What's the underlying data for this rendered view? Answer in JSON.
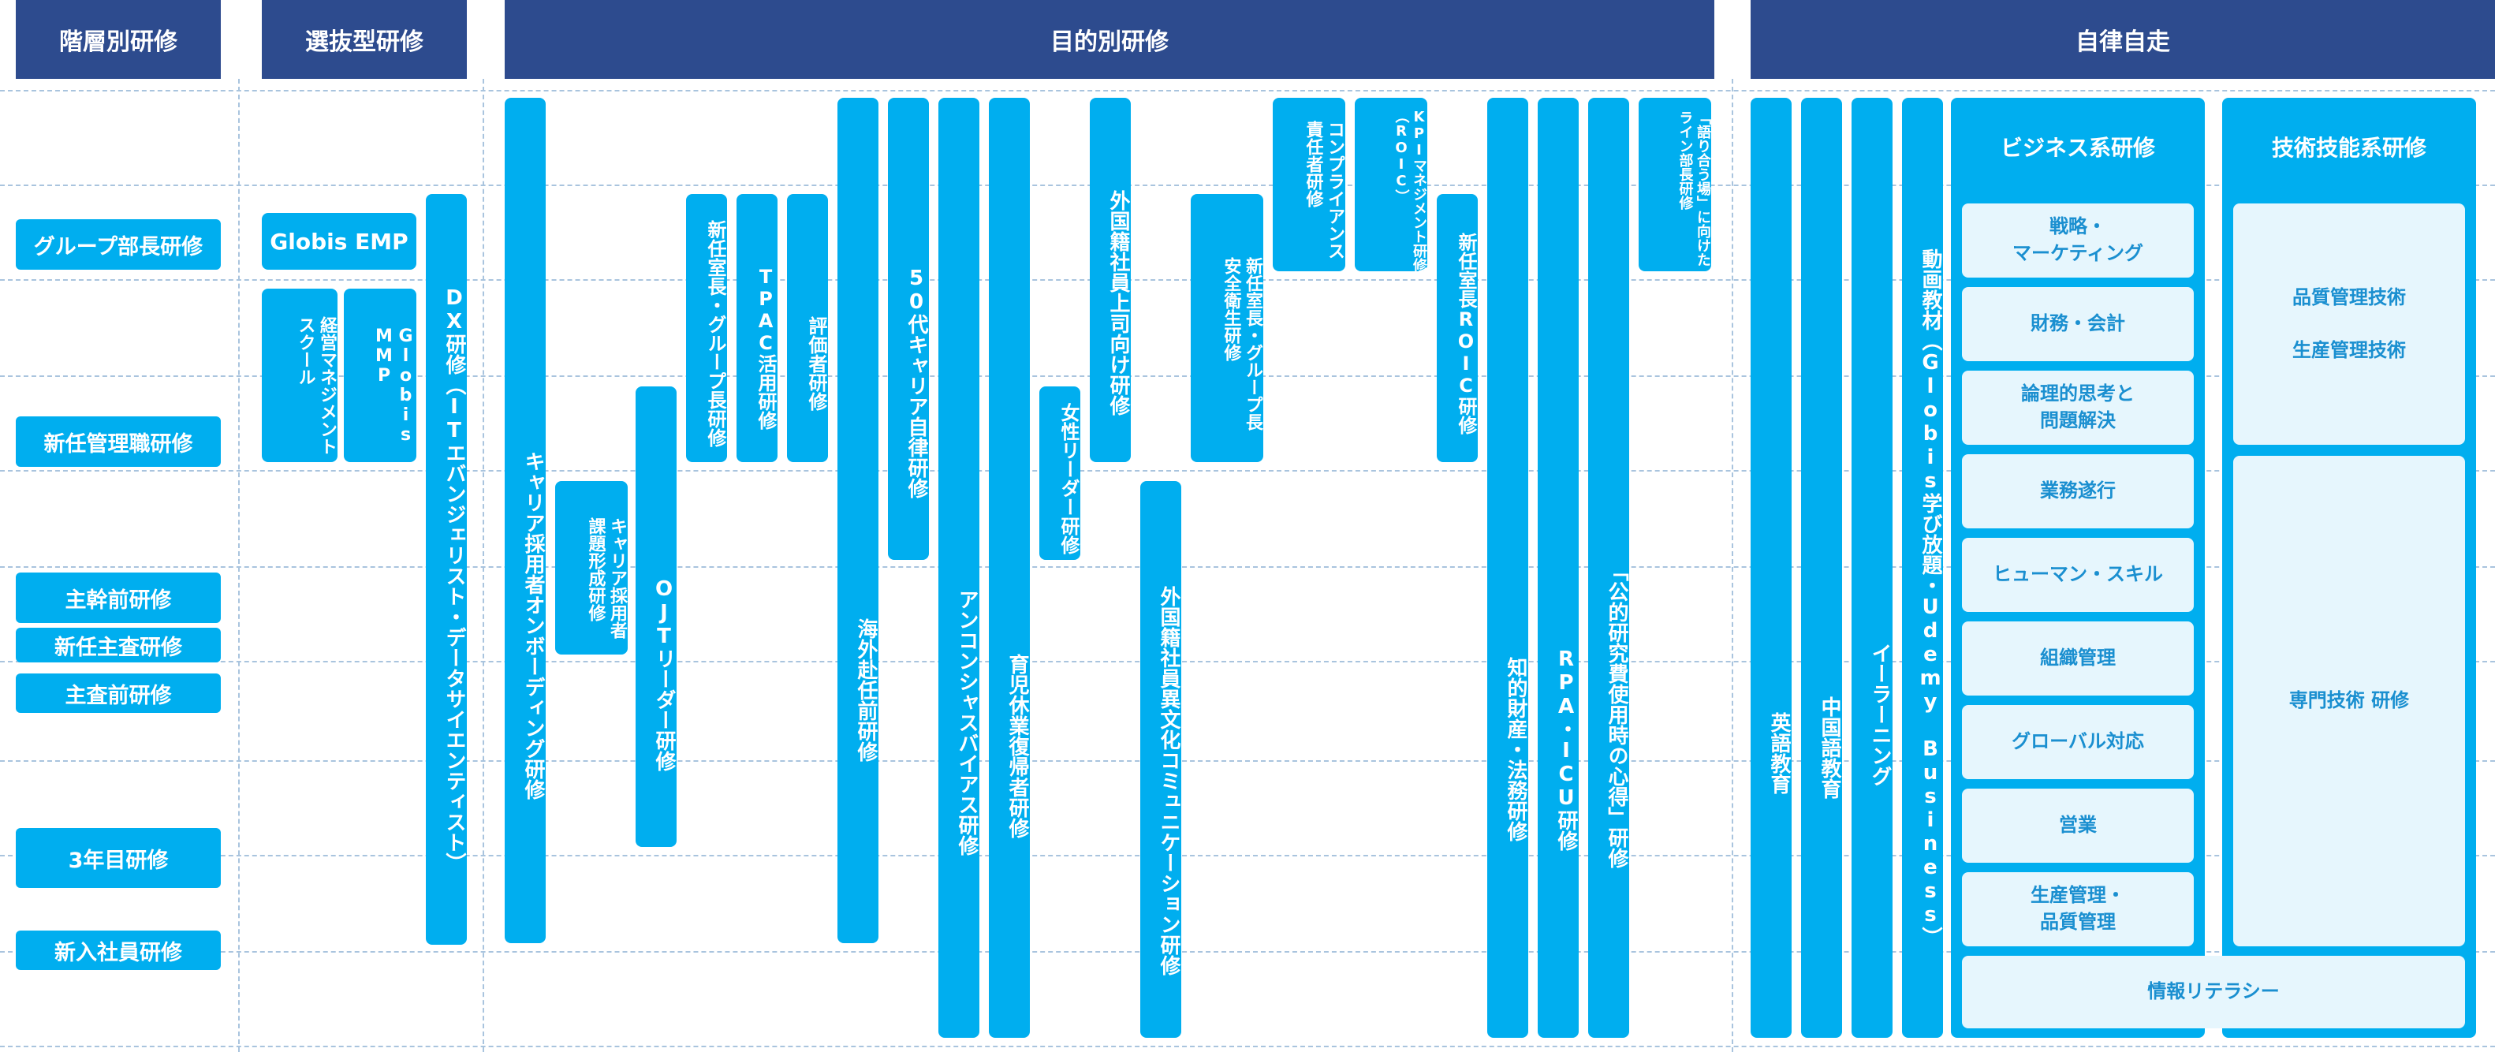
{
  "headers": {
    "level": "階層別研修",
    "select": "選抜型研修",
    "purpose": "目的別研修",
    "self": "自律自走"
  },
  "levels": [
    "グループ部長研修",
    "新任管理職研修",
    "主幹前研修",
    "新任主査研修",
    "主査前研修",
    "3年目研修",
    "新入社員研修"
  ],
  "select": {
    "globis_emp": "Globis EMP",
    "keiei": "経営マネジメント\nスクール",
    "globis_mmp": "Globis\nMMP",
    "dx": "DX研修（ITエバンジェリスト・データサイエンティスト）"
  },
  "purpose": {
    "career_onboarding": "キャリア採用者オンボーディング研修",
    "career_kadai": "キャリア採用者\n課題形成研修",
    "oj_leader": "OJTリーダー研修",
    "shinnin_group": "新任室長・グループ長研修",
    "tpac": "TPAC活用研修",
    "hyoka": "評価者研修",
    "kaigai": "海外赴任前研修",
    "career50": "50代キャリア自律研修",
    "unconscious": "アンコンシャスバイアス研修",
    "ikuji": "育児休業復帰者研修",
    "josei": "女性リーダー研修",
    "gaikoku_joshi": "外国籍社員上司向け研修",
    "gaikoku_ibunka": "外国籍社員異文化コミュニケーション研修",
    "anzen": "新任室長・グループ長\n安全衛生研修",
    "compliance": "コンプライアンス\n責任者研修",
    "kpi": "KPIマネジメント研修\n（ROIC）",
    "shinnin_roic": "新任室長ROIC研修",
    "chiteki": "知的財産・法務研修",
    "rpa": "RPA・ICU研修",
    "kouteki": "「公的研究費使用時の心得」研修",
    "kataru": "「語り合う場」に向けた\nライン部長研修"
  },
  "self": {
    "eigo": "英語教育",
    "chugoku": "中国語教育",
    "elearning": "イーラーニング",
    "douga": "動画教材（Globis学び放題・Udemy Business）",
    "business_title": "ビジネス系研修",
    "business_items": [
      "戦略・\nマーケティング",
      "財務・会計",
      "論理的思考と\n問題解決",
      "業務遂行",
      "ヒューマン・スキル",
      "組織管理",
      "グローバル対応",
      "営業",
      "生産管理・\n品質管理"
    ],
    "tech_title": "技術技能系研修",
    "tech_top": "品質管理技術\n\n生産管理技術",
    "tech_bottom": "専門技術 研修",
    "literacy": "情報リテラシー"
  }
}
